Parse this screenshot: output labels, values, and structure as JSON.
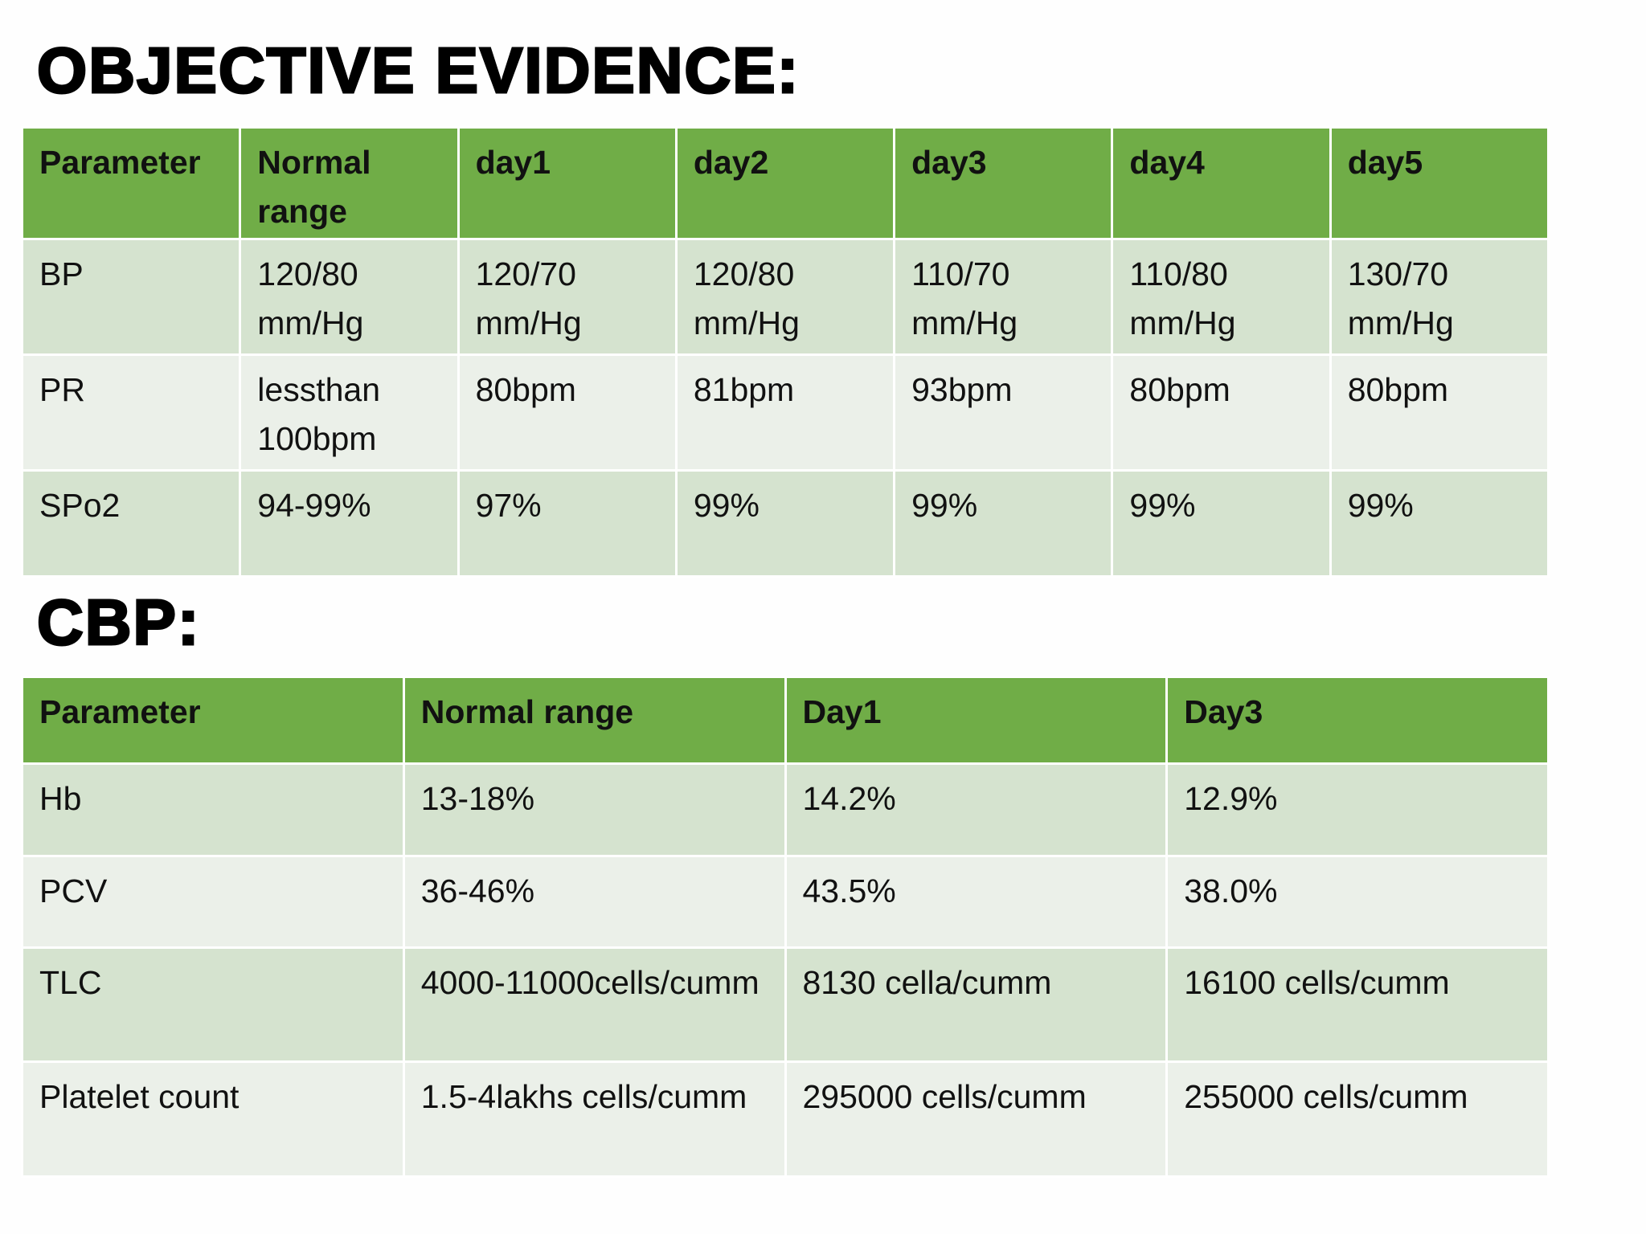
{
  "vitals_title": "OBJECTIVE EVIDENCE:",
  "vitals_table": {
    "header": [
      "Parameter",
      "Normal range",
      "day1",
      "day2",
      "day3",
      "day4",
      "day5"
    ],
    "rows": [
      [
        "BP",
        "120/80 mm/Hg",
        "120/70 mm/Hg",
        "120/80 mm/Hg",
        "110/70 mm/Hg",
        "110/80 mm/Hg",
        "130/70 mm/Hg"
      ],
      [
        "PR",
        "lessthan 100bpm",
        "80bpm",
        "81bpm",
        "93bpm",
        "80bpm",
        "80bpm"
      ],
      [
        "SPo2",
        "94-99%",
        "97%",
        "99%",
        "99%",
        "99%",
        "99%"
      ]
    ]
  },
  "cbp_title": "CBP:",
  "cbp_table": {
    "header": [
      "Parameter",
      "Normal range",
      "Day1",
      "Day3"
    ],
    "rows": [
      [
        "Hb",
        "13-18%",
        "14.2%",
        "12.9%"
      ],
      [
        "PCV",
        "36-46%",
        "43.5%",
        "38.0%"
      ],
      [
        "TLC",
        "4000-11000cells/cumm",
        "8130 cella/cumm",
        "16100 cells/cumm"
      ],
      [
        "Platelet count",
        "1.5-4lakhs cells/cumm",
        "295000 cells/cumm",
        "255000 cells/cumm"
      ]
    ]
  }
}
